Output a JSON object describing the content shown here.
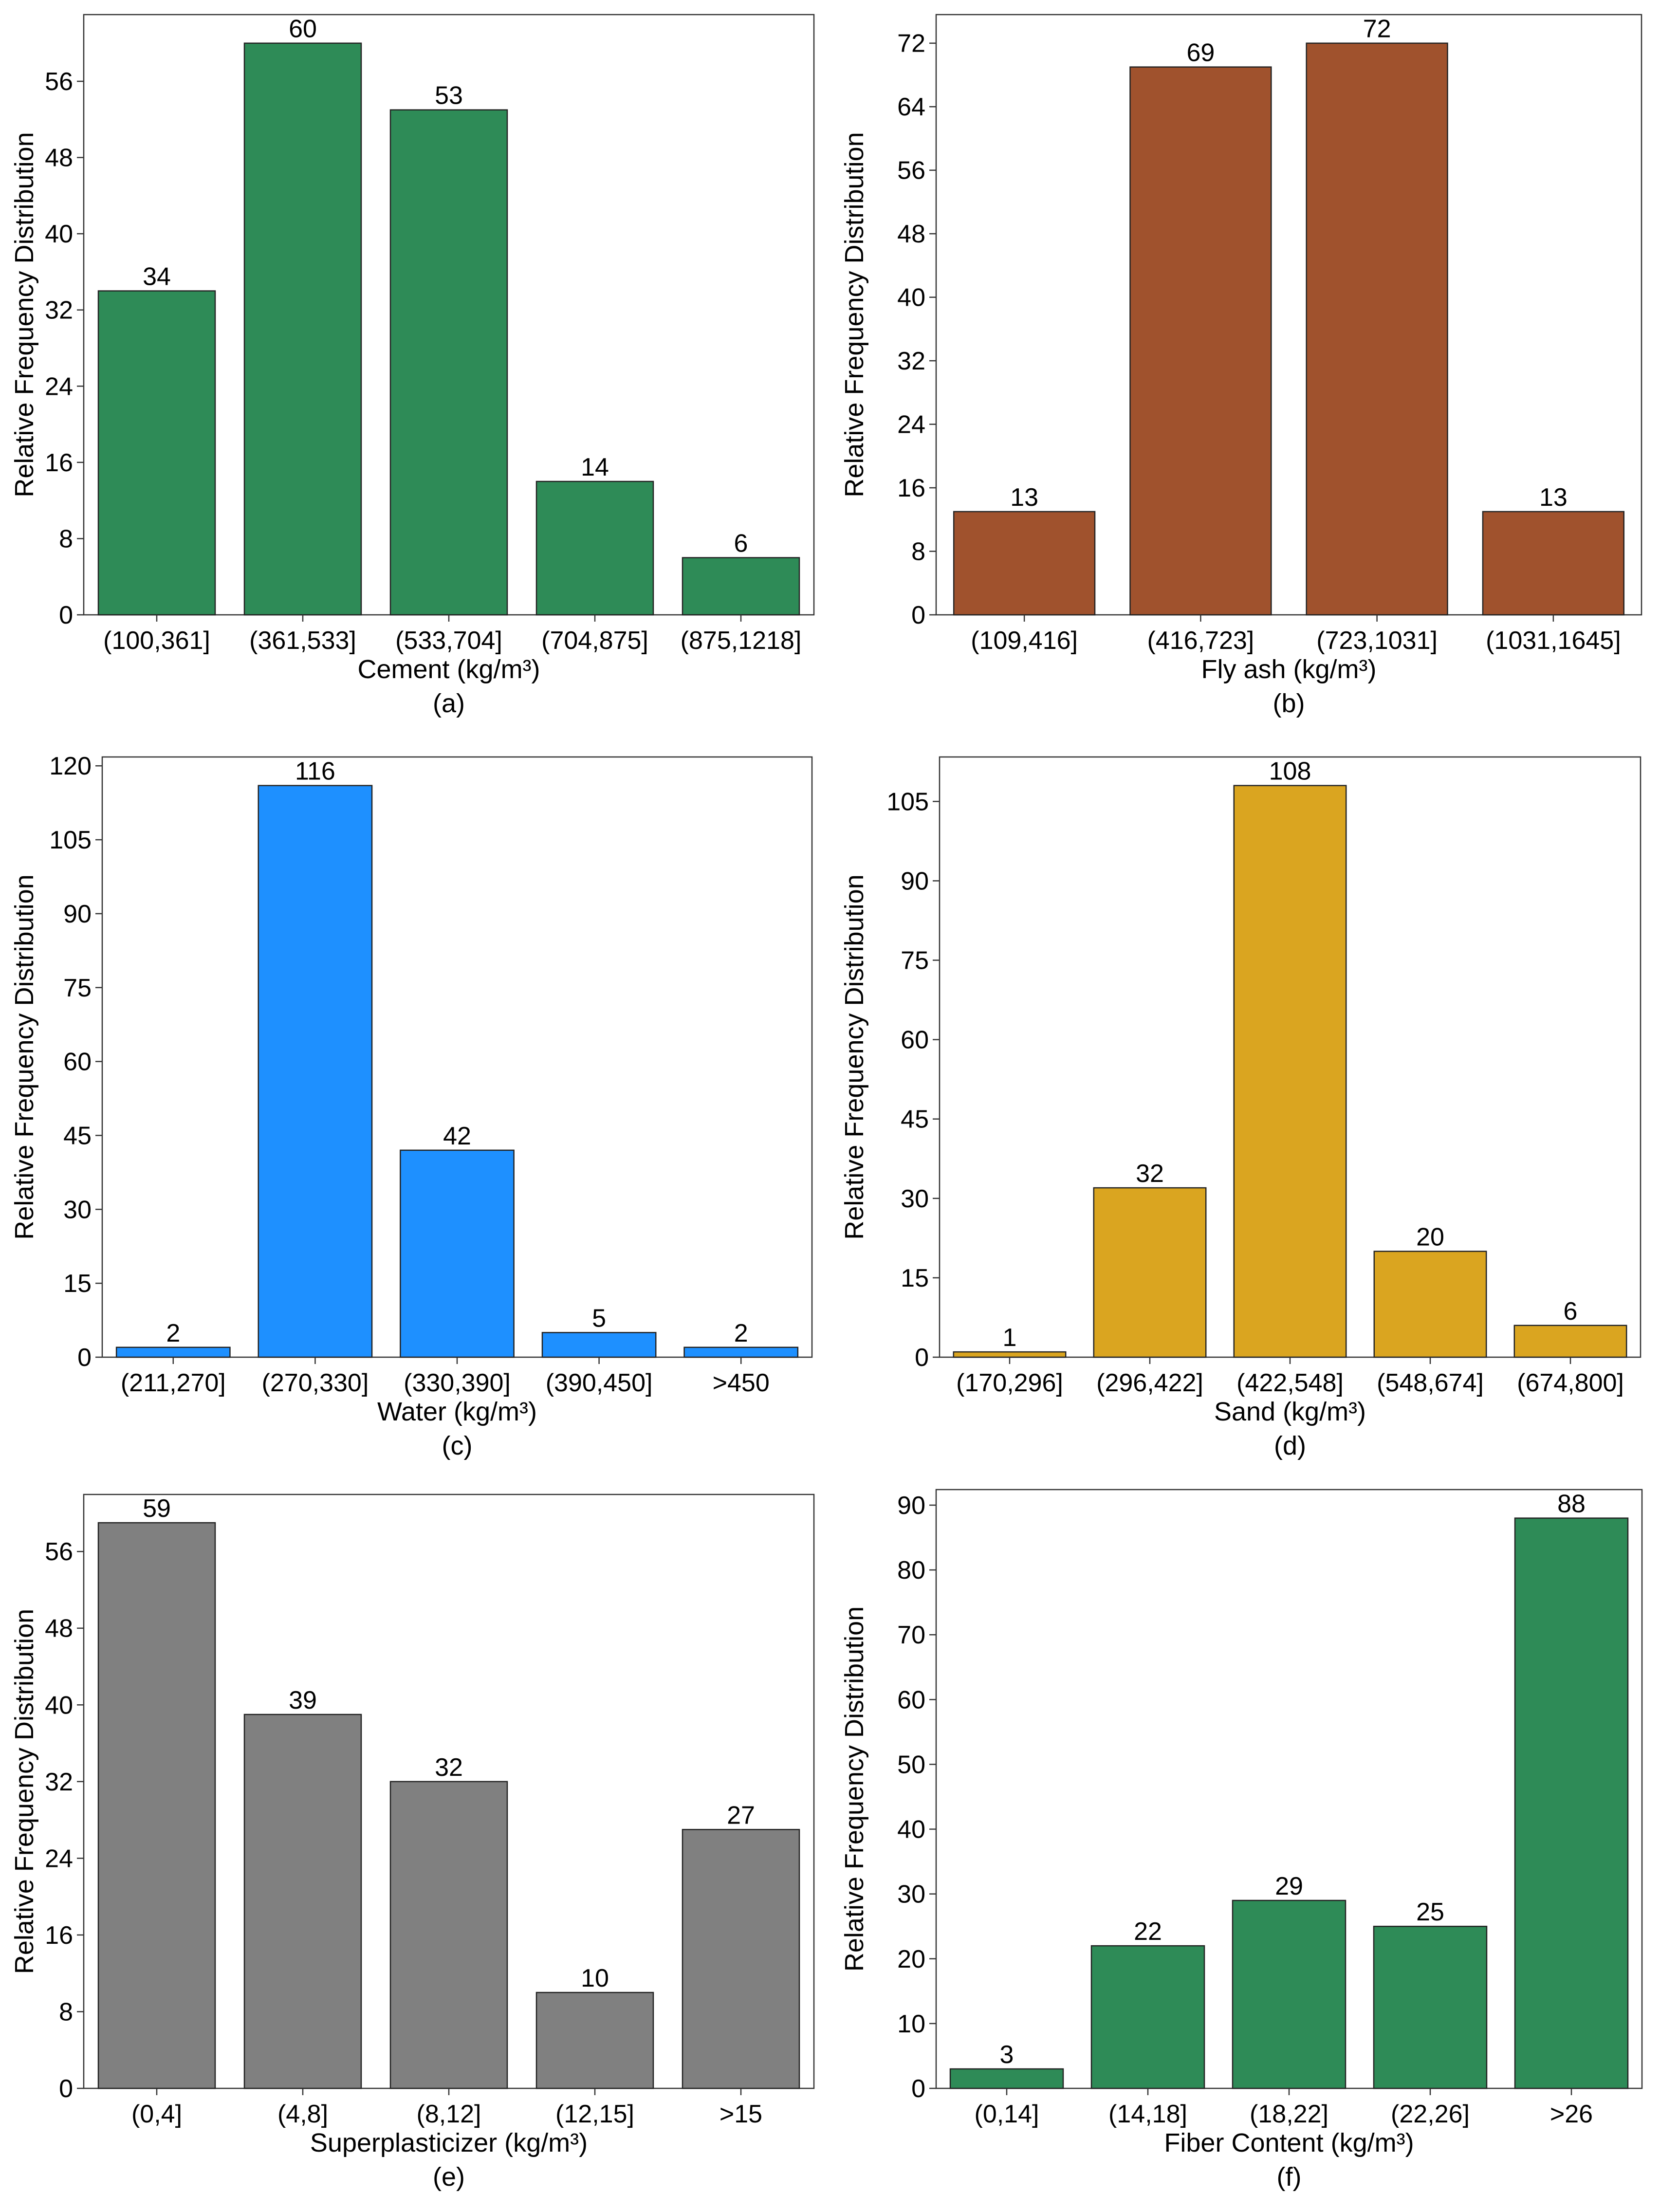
{
  "chart_data": [
    {
      "id": "a",
      "type": "bar",
      "panel_label": "(a)",
      "xlabel": "Cement (kg/m³)",
      "ylabel": "Relative Frequency Distribution",
      "categories": [
        "(100,361]",
        "(361,533]",
        "(533,704]",
        "(704,875]",
        "(875,1218]"
      ],
      "values": [
        34,
        60,
        53,
        14,
        6
      ],
      "ylim": [
        0,
        63
      ],
      "yticks": [
        0,
        8,
        16,
        24,
        32,
        40,
        48,
        56
      ],
      "color": "#2e8b57"
    },
    {
      "id": "b",
      "type": "bar",
      "panel_label": "(b)",
      "xlabel": "Fly ash (kg/m³)",
      "ylabel": "Relative Frequency Distribution",
      "categories": [
        "(109,416]",
        "(416,723]",
        "(723,1031]",
        "(1031,1645]"
      ],
      "values": [
        13,
        69,
        72,
        13
      ],
      "ylim": [
        0,
        75.6
      ],
      "yticks": [
        0,
        8,
        16,
        24,
        32,
        40,
        48,
        56,
        64,
        72
      ],
      "color": "#a0522d"
    },
    {
      "id": "c",
      "type": "bar",
      "panel_label": "(c)",
      "xlabel": "Water (kg/m³)",
      "ylabel": "Relative Frequency Distribution",
      "categories": [
        "(211,270]",
        "(270,330]",
        "(330,390]",
        "(390,450]",
        ">450"
      ],
      "values": [
        2,
        116,
        42,
        5,
        2
      ],
      "ylim": [
        0,
        121.8
      ],
      "yticks": [
        0,
        15,
        30,
        45,
        60,
        75,
        90,
        105,
        120
      ],
      "color": "#1e90ff"
    },
    {
      "id": "d",
      "type": "bar",
      "panel_label": "(d)",
      "xlabel": "Sand (kg/m³)",
      "ylabel": "Relative Frequency Distribution",
      "categories": [
        "(170,296]",
        "(296,422]",
        "(422,548]",
        "(548,674]",
        "(674,800]"
      ],
      "values": [
        1,
        32,
        108,
        20,
        6
      ],
      "ylim": [
        0,
        113.4
      ],
      "yticks": [
        0,
        15,
        30,
        45,
        60,
        75,
        90,
        105
      ],
      "color": "#daa520"
    },
    {
      "id": "e",
      "type": "bar",
      "panel_label": "(e)",
      "xlabel": "Superplasticizer (kg/m³)",
      "ylabel": "Relative Frequency Distribution",
      "categories": [
        "(0,4]",
        "(4,8]",
        "(8,12]",
        "(12,15]",
        ">15"
      ],
      "values": [
        59,
        39,
        32,
        10,
        27
      ],
      "ylim": [
        0,
        61.95
      ],
      "yticks": [
        0,
        8,
        16,
        24,
        32,
        40,
        48,
        56
      ],
      "color": "#808080"
    },
    {
      "id": "f",
      "type": "bar",
      "panel_label": "(f)",
      "xlabel": "Fiber Content (kg/m³)",
      "ylabel": "Relative Frequency Distribution",
      "categories": [
        "(0,14]",
        "(14,18]",
        "(18,22]",
        "(22,26]",
        ">26"
      ],
      "values": [
        3,
        22,
        29,
        25,
        88
      ],
      "ylim": [
        0,
        92.4
      ],
      "yticks": [
        0,
        10,
        20,
        30,
        40,
        50,
        60,
        70,
        80,
        90
      ],
      "color": "#2e8b57"
    }
  ]
}
